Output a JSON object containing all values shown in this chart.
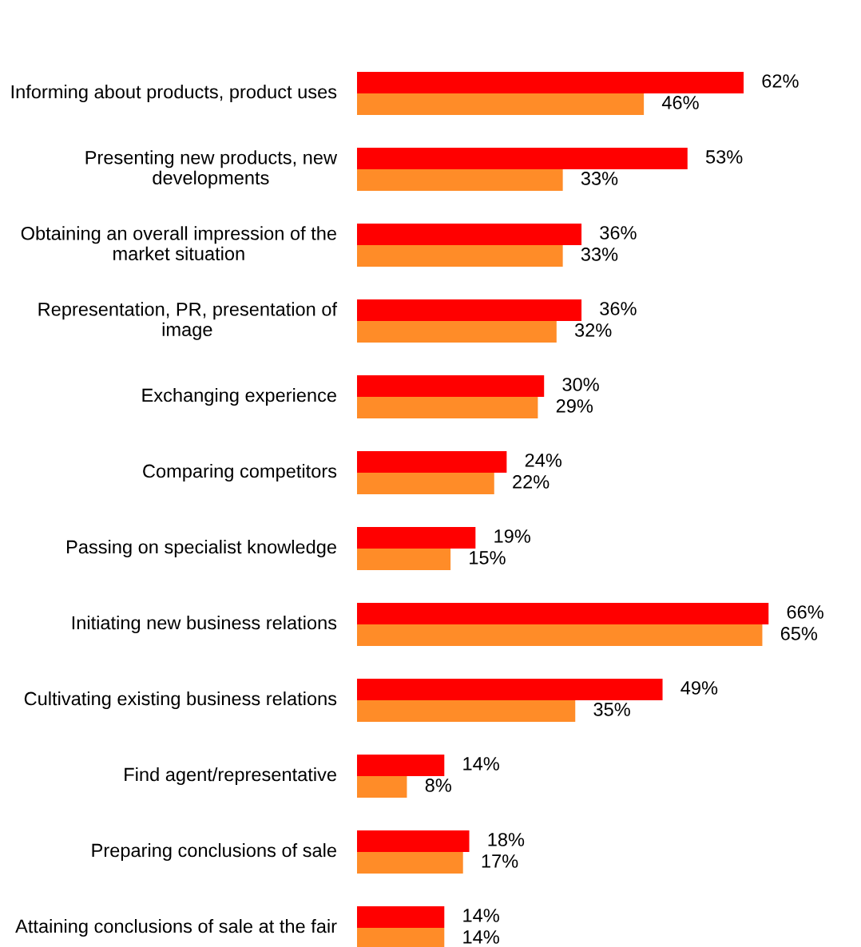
{
  "chart_data": {
    "type": "bar",
    "orientation": "horizontal",
    "categories": [
      "Informing about products, product uses",
      "Presenting new products, new developments",
      "Obtaining an overall impression of the market situation",
      "Representation, PR, presentation of image",
      "Exchanging experience",
      "Comparing competitors",
      "Passing on specialist knowledge",
      "Initiating new business relations",
      "Cultivating existing business relations",
      "Find agent/representative",
      "Preparing conclusions of sale",
      "Attaining conclusions of sale at the fair"
    ],
    "series": [
      {
        "color": "#ff0000",
        "values": [
          62,
          53,
          36,
          36,
          30,
          24,
          19,
          66,
          49,
          14,
          18,
          14
        ],
        "value_labels": [
          "62%",
          "53%",
          "36%",
          "36%",
          "30%",
          "24%",
          "19%",
          "66%",
          "49%",
          "14%",
          "18%",
          "14%"
        ]
      },
      {
        "color": "#ff8c28",
        "values": [
          46,
          33,
          33,
          32,
          29,
          22,
          15,
          65,
          35,
          8,
          17,
          14
        ],
        "value_labels": [
          "46%",
          "33%",
          "33%",
          "32%",
          "29%",
          "22%",
          "15%",
          "65%",
          "35%",
          "8%",
          "17%",
          "14%"
        ]
      }
    ],
    "legend": false
  }
}
